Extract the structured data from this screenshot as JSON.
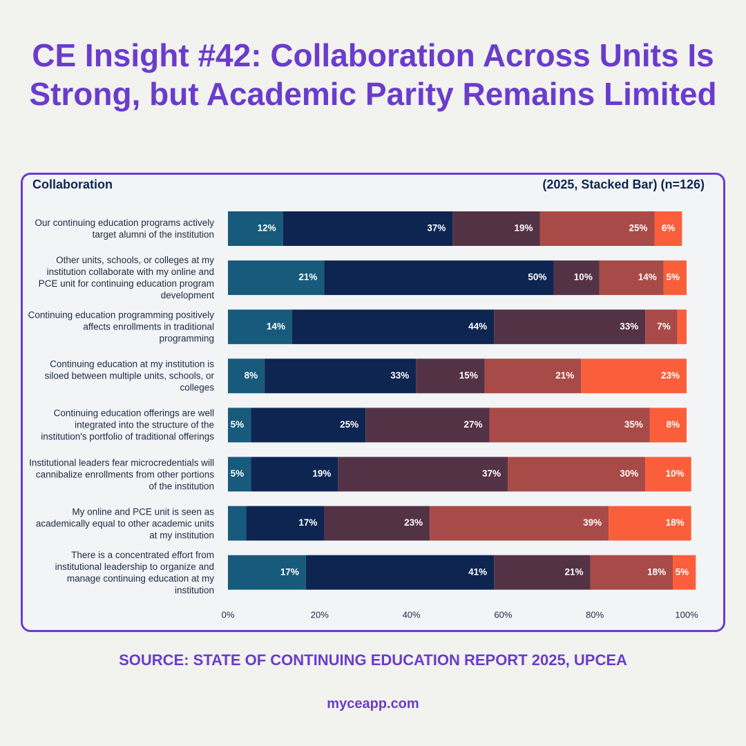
{
  "chart_data": {
    "type": "stacked-bar-horizontal",
    "title": "CE Insight #42: Collaboration Across Units Is Strong, but Academic Parity Remains Limited",
    "panel_title": "Collaboration",
    "panel_subtitle": "(2025, Stacked Bar) (n=126)",
    "source": "SOURCE: STATE OF CONTINUING EDUCATION REPORT 2025, UPCEA",
    "footer": "myceapp.com",
    "categories": [
      "Our continuing education programs actively target alumni of the institution",
      "Other units, schools, or colleges at my institution collaborate with my online and PCE unit for continuing education program development",
      "Continuing education programming positively affects enrollments in traditional programming",
      "Continuing education at my institution is siloed between multiple units, schools, or colleges",
      "Continuing education offerings are well integrated into the structure of the institution's portfolio of traditional offerings",
      "Institutional leaders fear microcredentials will cannibalize enrollments from other portions of the institution",
      "My online and PCE unit is seen as academically equal to other academic units at my institution",
      "There is a concentrated effort from institutional leadership to organize and manage continuing education at my institution"
    ],
    "series": [
      {
        "color": "#175a7c",
        "values": [
          12,
          21,
          14,
          8,
          5,
          5,
          4,
          17
        ],
        "value_labels": [
          "12%",
          "21%",
          "14%",
          "8%",
          "5%",
          "5%",
          null,
          "17%"
        ]
      },
      {
        "color": "#0d2550",
        "values": [
          37,
          50,
          44,
          33,
          25,
          19,
          17,
          41
        ],
        "value_labels": [
          "37%",
          "50%",
          "44%",
          "33%",
          "25%",
          "19%",
          "17%",
          "41%"
        ]
      },
      {
        "color": "#543246",
        "values": [
          19,
          10,
          33,
          15,
          27,
          37,
          23,
          21
        ],
        "value_labels": [
          "19%",
          "10%",
          "33%",
          "15%",
          "27%",
          "37%",
          "23%",
          "21%"
        ]
      },
      {
        "color": "#a84a47",
        "values": [
          25,
          14,
          7,
          21,
          35,
          30,
          39,
          18
        ],
        "value_labels": [
          "25%",
          "14%",
          "7%",
          "21%",
          "35%",
          "30%",
          "39%",
          "18%"
        ]
      },
      {
        "color": "#fb5e3a",
        "values": [
          6,
          5,
          2,
          23,
          8,
          10,
          18,
          5
        ],
        "value_labels": [
          "6%",
          "5%",
          null,
          "23%",
          "8%",
          "10%",
          "18%",
          "5%"
        ]
      }
    ],
    "xlim": [
      0,
      100
    ],
    "xticks": [
      {
        "value": 0,
        "label": "0%"
      },
      {
        "value": 20,
        "label": "20%"
      },
      {
        "value": 40,
        "label": "40%"
      },
      {
        "value": 60,
        "label": "60%"
      },
      {
        "value": 80,
        "label": "80%"
      },
      {
        "value": 100,
        "label": "100%"
      }
    ]
  }
}
